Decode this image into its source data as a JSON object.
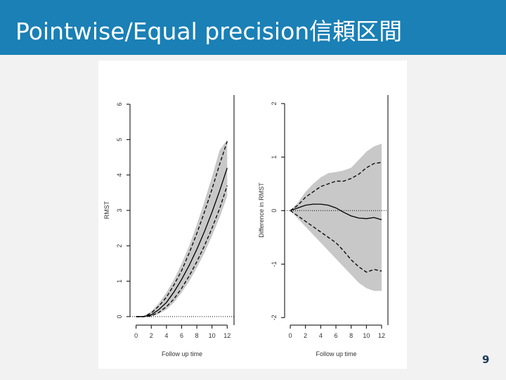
{
  "header": {
    "title": "Pointwise/Equal precision信頼区間"
  },
  "page_number": "9",
  "chart_data": [
    {
      "type": "line",
      "x_label": "Follow up time",
      "y_label": "RMST",
      "x": [
        0,
        1,
        2,
        3,
        4,
        5,
        6,
        7,
        8,
        9,
        10,
        11,
        12
      ],
      "mean": [
        0,
        0,
        0.05,
        0.2,
        0.4,
        0.7,
        1.05,
        1.45,
        1.9,
        2.4,
        2.95,
        3.55,
        4.2
      ],
      "upper": [
        0,
        0,
        0.1,
        0.3,
        0.55,
        0.9,
        1.3,
        1.8,
        2.35,
        2.95,
        3.6,
        4.3,
        4.95
      ],
      "lower": [
        0,
        0,
        0.02,
        0.12,
        0.28,
        0.5,
        0.8,
        1.15,
        1.55,
        2.0,
        2.5,
        3.05,
        3.7
      ],
      "band_upper": [
        0,
        0.02,
        0.15,
        0.38,
        0.68,
        1.05,
        1.5,
        2.0,
        2.6,
        3.25,
        3.95,
        4.7,
        5.0
      ],
      "band_lower": [
        0,
        0,
        0,
        0.08,
        0.2,
        0.4,
        0.68,
        1.0,
        1.38,
        1.8,
        2.28,
        2.8,
        3.4
      ],
      "reference": 0,
      "xlim": [
        -0.8,
        12.9
      ],
      "ylim": [
        -0.24,
        6.26
      ],
      "xticks": [
        0,
        2,
        4,
        6,
        8,
        10,
        12
      ],
      "yticks": [
        0,
        1,
        2,
        3,
        4,
        5,
        6
      ],
      "band_color": "#c8c8c8"
    },
    {
      "type": "line",
      "x_label": "Follow up time",
      "y_label": "Difference in RMST",
      "x": [
        0,
        1,
        2,
        3,
        4,
        5,
        6,
        7,
        8,
        9,
        10,
        11,
        12
      ],
      "mean": [
        0,
        0.05,
        0.1,
        0.12,
        0.12,
        0.1,
        0.05,
        -0.03,
        -0.1,
        -0.14,
        -0.15,
        -0.13,
        -0.17
      ],
      "upper": [
        0,
        0.1,
        0.25,
        0.35,
        0.45,
        0.5,
        0.55,
        0.55,
        0.6,
        0.68,
        0.8,
        0.88,
        0.9
      ],
      "lower": [
        0,
        -0.1,
        -0.2,
        -0.3,
        -0.4,
        -0.5,
        -0.6,
        -0.75,
        -0.92,
        -1.05,
        -1.15,
        -1.1,
        -1.13
      ],
      "band_upper": [
        0,
        0.15,
        0.35,
        0.5,
        0.62,
        0.7,
        0.72,
        0.75,
        0.8,
        0.95,
        1.1,
        1.2,
        1.25
      ],
      "band_lower": [
        0,
        -0.15,
        -0.3,
        -0.45,
        -0.6,
        -0.75,
        -0.9,
        -1.05,
        -1.2,
        -1.35,
        -1.45,
        -1.5,
        -1.5
      ],
      "reference": 0,
      "xlim": [
        -0.74,
        12.83
      ],
      "ylim": [
        -2.14,
        2.16
      ],
      "xticks": [
        0,
        2,
        4,
        6,
        8,
        10,
        12
      ],
      "yticks": [
        -2,
        -1,
        0,
        1,
        2
      ],
      "band_color": "#c8c8c8"
    }
  ]
}
